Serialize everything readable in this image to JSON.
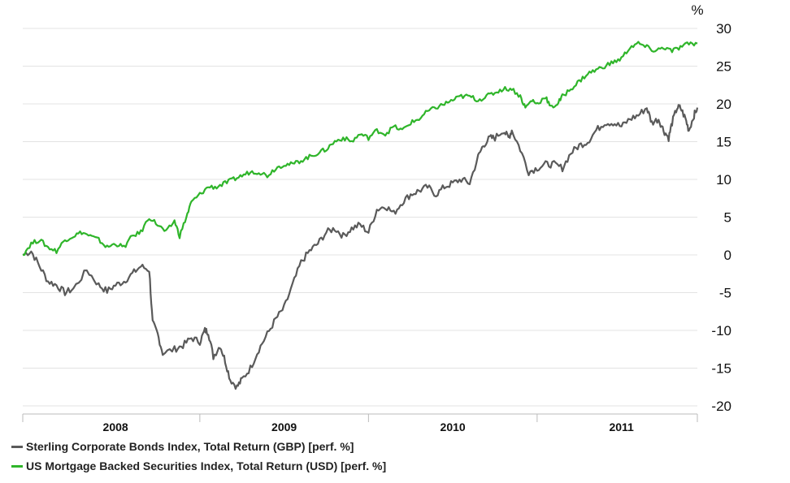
{
  "chart_data": {
    "type": "line",
    "unit_label": "%",
    "ylim": [
      -20,
      30
    ],
    "yticks": [
      30,
      25,
      20,
      15,
      10,
      5,
      0,
      -5,
      -10,
      -15,
      -20
    ],
    "x_range": [
      2007.95,
      2011.95
    ],
    "x_year_labels": [
      "2008",
      "2009",
      "2010",
      "2011"
    ],
    "x_year_centers": [
      2008.5,
      2009.5,
      2010.5,
      2011.5
    ],
    "x_year_boundaries": [
      2009,
      2010,
      2011
    ],
    "grid": true,
    "legend_placement": "bottom-left",
    "series": [
      {
        "name": "Sterling Corporate Bonds Index, Total Return (GBP) [perf. %]",
        "color": "#5a5a5a",
        "points": [
          [
            2007.95,
            0
          ],
          [
            2008.0,
            0.5
          ],
          [
            2008.05,
            -1.5
          ],
          [
            2008.1,
            -3.5
          ],
          [
            2008.15,
            -4.0
          ],
          [
            2008.2,
            -5.0
          ],
          [
            2008.25,
            -4.5
          ],
          [
            2008.33,
            -2.0
          ],
          [
            2008.4,
            -4.0
          ],
          [
            2008.45,
            -4.8
          ],
          [
            2008.5,
            -4.0
          ],
          [
            2008.55,
            -3.5
          ],
          [
            2008.6,
            -2.5
          ],
          [
            2008.65,
            -1.5
          ],
          [
            2008.7,
            -2.0
          ],
          [
            2008.72,
            -9.0
          ],
          [
            2008.75,
            -10.5
          ],
          [
            2008.78,
            -13.0
          ],
          [
            2008.85,
            -12.5
          ],
          [
            2008.9,
            -12.0
          ],
          [
            2008.95,
            -11.0
          ],
          [
            2009.0,
            -11.5
          ],
          [
            2009.03,
            -10.0
          ],
          [
            2009.05,
            -10.2
          ],
          [
            2009.08,
            -13.5
          ],
          [
            2009.12,
            -12.0
          ],
          [
            2009.15,
            -14.0
          ],
          [
            2009.18,
            -16.5
          ],
          [
            2009.22,
            -17.5
          ],
          [
            2009.25,
            -16.5
          ],
          [
            2009.3,
            -15.0
          ],
          [
            2009.35,
            -12.5
          ],
          [
            2009.4,
            -10.5
          ],
          [
            2009.45,
            -8.5
          ],
          [
            2009.5,
            -7.0
          ],
          [
            2009.55,
            -4.0
          ],
          [
            2009.6,
            -1.0
          ],
          [
            2009.65,
            0.5
          ],
          [
            2009.7,
            1.5
          ],
          [
            2009.75,
            3.0
          ],
          [
            2009.8,
            3.5
          ],
          [
            2009.85,
            2.5
          ],
          [
            2009.9,
            3.5
          ],
          [
            2009.95,
            4.0
          ],
          [
            2010.0,
            3.0
          ],
          [
            2010.05,
            6.0
          ],
          [
            2010.1,
            6.5
          ],
          [
            2010.15,
            5.5
          ],
          [
            2010.2,
            7.0
          ],
          [
            2010.25,
            8.0
          ],
          [
            2010.3,
            8.5
          ],
          [
            2010.35,
            9.0
          ],
          [
            2010.4,
            8.0
          ],
          [
            2010.45,
            9.0
          ],
          [
            2010.5,
            9.5
          ],
          [
            2010.55,
            10.0
          ],
          [
            2010.6,
            9.5
          ],
          [
            2010.65,
            13.0
          ],
          [
            2010.68,
            14.5
          ],
          [
            2010.72,
            15.5
          ],
          [
            2010.75,
            15.5
          ],
          [
            2010.8,
            16.5
          ],
          [
            2010.83,
            15.5
          ],
          [
            2010.85,
            16.5
          ],
          [
            2010.9,
            14.0
          ],
          [
            2010.95,
            11.0
          ],
          [
            2011.0,
            11.5
          ],
          [
            2011.05,
            12.0
          ],
          [
            2011.1,
            12.0
          ],
          [
            2011.15,
            11.5
          ],
          [
            2011.2,
            13.5
          ],
          [
            2011.25,
            14.5
          ],
          [
            2011.3,
            15.0
          ],
          [
            2011.35,
            16.5
          ],
          [
            2011.4,
            17.5
          ],
          [
            2011.45,
            17.5
          ],
          [
            2011.5,
            17.0
          ],
          [
            2011.55,
            18.0
          ],
          [
            2011.6,
            18.5
          ],
          [
            2011.65,
            19.5
          ],
          [
            2011.68,
            17.5
          ],
          [
            2011.72,
            18.0
          ],
          [
            2011.75,
            16.5
          ],
          [
            2011.78,
            15.5
          ],
          [
            2011.8,
            17.5
          ],
          [
            2011.83,
            19.5
          ],
          [
            2011.85,
            19.5
          ],
          [
            2011.88,
            18.0
          ],
          [
            2011.9,
            16.5
          ],
          [
            2011.93,
            18.5
          ],
          [
            2011.95,
            19.5
          ]
        ]
      },
      {
        "name": "US Mortgage Backed Securities Index, Total Return (USD) [perf. %]",
        "color": "#2fb52a",
        "points": [
          [
            2007.95,
            0
          ],
          [
            2008.0,
            1.5
          ],
          [
            2008.05,
            2.0
          ],
          [
            2008.1,
            1.0
          ],
          [
            2008.15,
            0.5
          ],
          [
            2008.2,
            2.0
          ],
          [
            2008.25,
            2.5
          ],
          [
            2008.3,
            3.0
          ],
          [
            2008.35,
            2.5
          ],
          [
            2008.4,
            2.0
          ],
          [
            2008.45,
            1.0
          ],
          [
            2008.5,
            1.5
          ],
          [
            2008.55,
            1.0
          ],
          [
            2008.6,
            2.5
          ],
          [
            2008.65,
            3.0
          ],
          [
            2008.7,
            5.0
          ],
          [
            2008.75,
            4.0
          ],
          [
            2008.8,
            3.0
          ],
          [
            2008.85,
            4.5
          ],
          [
            2008.88,
            2.5
          ],
          [
            2008.92,
            5.0
          ],
          [
            2008.95,
            7.0
          ],
          [
            2009.0,
            8.0
          ],
          [
            2009.05,
            9.0
          ],
          [
            2009.1,
            9.0
          ],
          [
            2009.15,
            9.5
          ],
          [
            2009.2,
            10.0
          ],
          [
            2009.25,
            10.5
          ],
          [
            2009.3,
            11.0
          ],
          [
            2009.35,
            11.0
          ],
          [
            2009.4,
            10.5
          ],
          [
            2009.45,
            11.5
          ],
          [
            2009.5,
            12.0
          ],
          [
            2009.55,
            12.0
          ],
          [
            2009.6,
            12.5
          ],
          [
            2009.65,
            13.0
          ],
          [
            2009.7,
            13.5
          ],
          [
            2009.75,
            14.0
          ],
          [
            2009.8,
            15.0
          ],
          [
            2009.85,
            15.5
          ],
          [
            2009.9,
            15.0
          ],
          [
            2009.95,
            16.0
          ],
          [
            2010.0,
            15.5
          ],
          [
            2010.05,
            16.5
          ],
          [
            2010.1,
            16.0
          ],
          [
            2010.15,
            17.0
          ],
          [
            2010.2,
            16.5
          ],
          [
            2010.25,
            17.5
          ],
          [
            2010.3,
            18.0
          ],
          [
            2010.35,
            19.0
          ],
          [
            2010.4,
            19.5
          ],
          [
            2010.45,
            20.0
          ],
          [
            2010.5,
            20.5
          ],
          [
            2010.55,
            21.0
          ],
          [
            2010.6,
            21.0
          ],
          [
            2010.65,
            20.5
          ],
          [
            2010.7,
            21.0
          ],
          [
            2010.75,
            21.5
          ],
          [
            2010.8,
            22.0
          ],
          [
            2010.85,
            22.0
          ],
          [
            2010.9,
            21.0
          ],
          [
            2010.93,
            19.5
          ],
          [
            2010.97,
            20.5
          ],
          [
            2011.0,
            20.0
          ],
          [
            2011.05,
            21.0
          ],
          [
            2011.08,
            19.5
          ],
          [
            2011.12,
            20.0
          ],
          [
            2011.15,
            21.0
          ],
          [
            2011.2,
            22.0
          ],
          [
            2011.25,
            23.0
          ],
          [
            2011.3,
            24.0
          ],
          [
            2011.35,
            24.5
          ],
          [
            2011.4,
            25.0
          ],
          [
            2011.45,
            25.5
          ],
          [
            2011.5,
            26.0
          ],
          [
            2011.55,
            27.5
          ],
          [
            2011.6,
            28.0
          ],
          [
            2011.65,
            27.5
          ],
          [
            2011.7,
            27.0
          ],
          [
            2011.75,
            27.5
          ],
          [
            2011.8,
            27.0
          ],
          [
            2011.85,
            27.5
          ],
          [
            2011.9,
            28.0
          ],
          [
            2011.95,
            28.0
          ]
        ]
      }
    ]
  }
}
